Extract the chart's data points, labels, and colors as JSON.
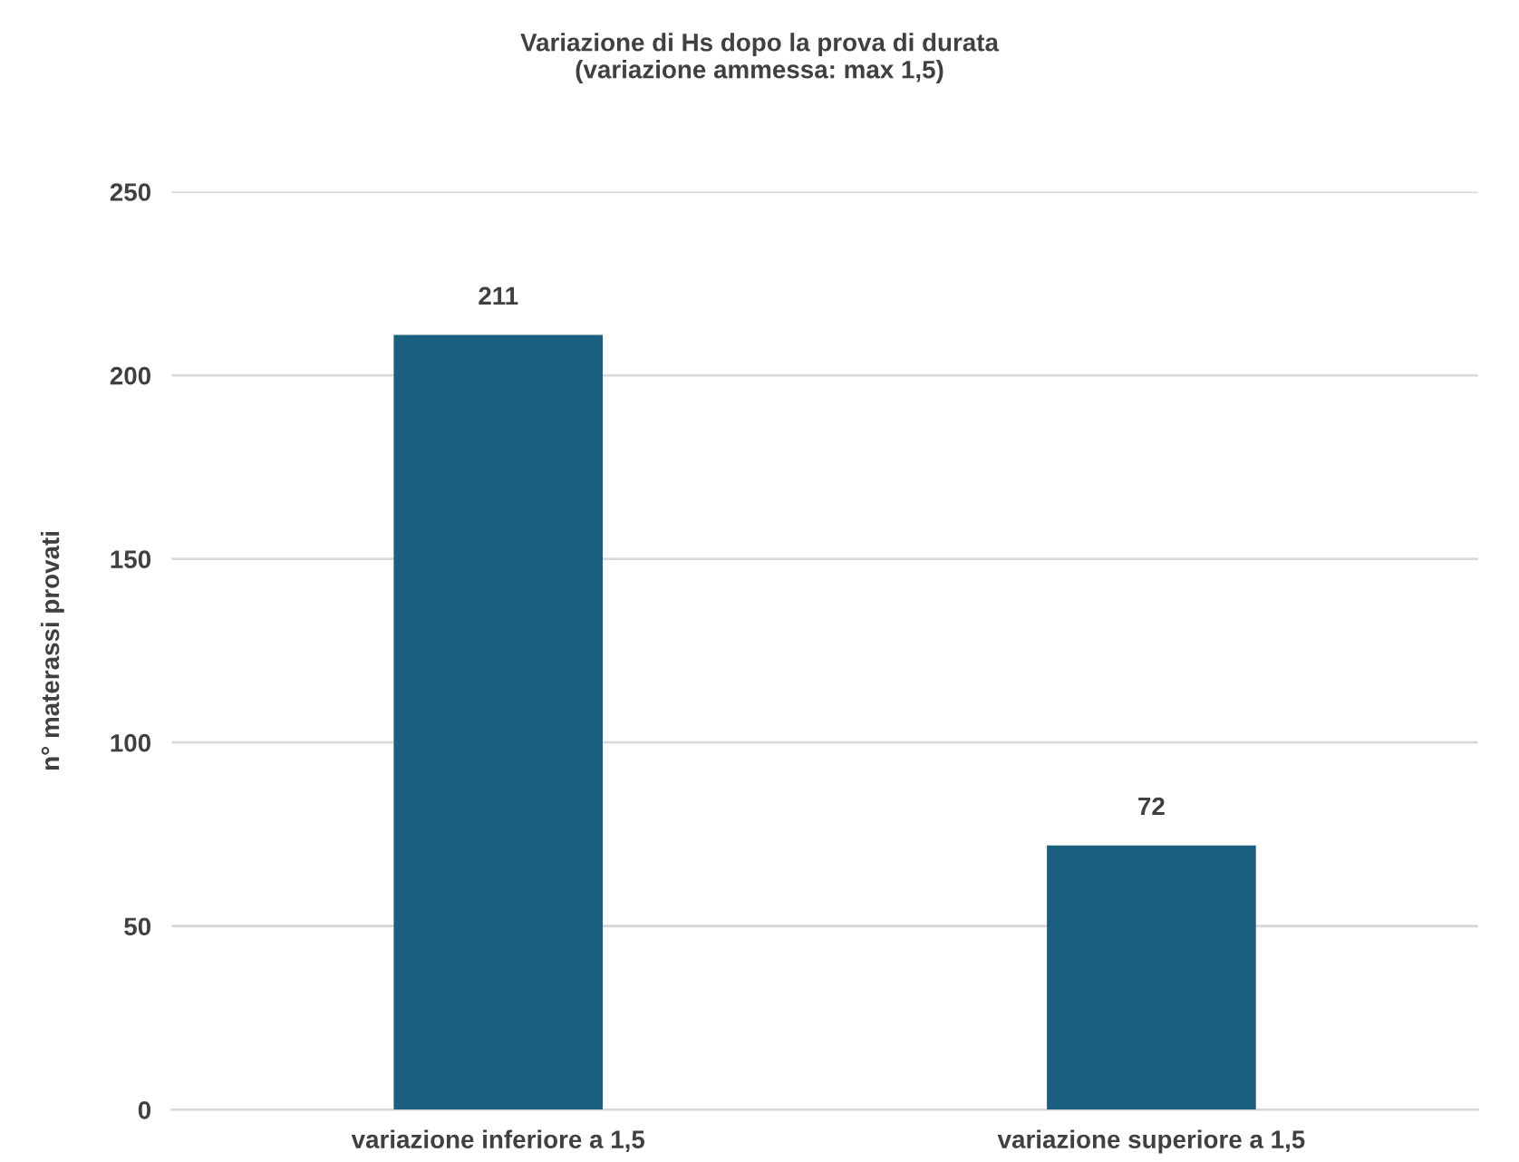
{
  "chart_data": {
    "type": "bar",
    "title": "Variazione di Hs dopo la prova di durata\n(variazione ammessa: max 1,5)",
    "ylabel": "n° materassi provati",
    "categories": [
      "variazione inferiore a 1,5",
      "variazione superiore a 1,5"
    ],
    "values": [
      211,
      72
    ],
    "color": "#1a5f80",
    "ylim": [
      0,
      250
    ],
    "yticks": [
      0,
      50,
      100,
      150,
      200,
      250
    ],
    "grid": "y",
    "data_labels": true,
    "legend": false
  }
}
